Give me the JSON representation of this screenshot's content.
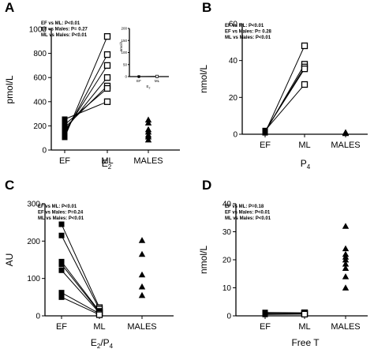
{
  "chart_data": [
    {
      "panel": "A",
      "type": "scatter",
      "categories": [
        "EF",
        "ML",
        "MALES"
      ],
      "xlabel_main": "E",
      "xlabel_sub": "2",
      "ylabel": "pmol/L",
      "ylim": [
        0,
        1000
      ],
      "yticks": [
        0,
        200,
        400,
        600,
        800,
        1000
      ],
      "stats": [
        "EF vs ML: P<0.01",
        "EF vs Males: P= 0.27",
        "ML vs Males: P<0.01"
      ],
      "paired": [
        [
          105,
          940
        ],
        [
          130,
          790
        ],
        [
          150,
          700
        ],
        [
          165,
          600
        ],
        [
          185,
          530
        ],
        [
          210,
          510
        ],
        [
          255,
          400
        ]
      ],
      "males": [
        85,
        110,
        125,
        150,
        170,
        225,
        250
      ],
      "inset": {
        "categories": [
          "EF",
          "ML"
        ],
        "xlabel_main": "E",
        "xlabel_sub": "2",
        "ylabel": "nmol/L",
        "ylim": [
          0,
          200
        ],
        "yticks": [
          0,
          50,
          100,
          150,
          200
        ],
        "values": [
          0.2,
          0.7
        ]
      }
    },
    {
      "panel": "B",
      "type": "scatter",
      "categories": [
        "EF",
        "ML",
        "MALES"
      ],
      "xlabel_main": "P",
      "xlabel_sub": "4",
      "ylabel": "nmol/L",
      "ylim": [
        0,
        60
      ],
      "yticks": [
        0,
        20,
        40,
        60
      ],
      "stats": [
        "EF vs ML: P<0.01",
        "EF vs Males: P= 0.28",
        "ML vs Males: P<0.01"
      ],
      "paired": [
        [
          0.8,
          48
        ],
        [
          1.2,
          38
        ],
        [
          1.5,
          36.5
        ],
        [
          1.8,
          35.5
        ],
        [
          2.0,
          27
        ]
      ],
      "males": [
        0.5,
        0.8,
        1.0
      ]
    },
    {
      "panel": "C",
      "type": "scatter",
      "categories": [
        "EF",
        "ML",
        "MALES"
      ],
      "xlabel_main": "E",
      "xlabel_sub": "2",
      "xlabel_mid": "/P",
      "xlabel_sub2": "4",
      "ylabel": "AU",
      "ylim": [
        0,
        300
      ],
      "yticks": [
        0,
        100,
        200,
        300
      ],
      "stats": [
        "EF vs ML: P<0.01",
        "EF vs Males: P=0.24",
        "ML vs Males: P<0.01"
      ],
      "paired": [
        [
          245,
          22
        ],
        [
          215,
          18
        ],
        [
          145,
          12
        ],
        [
          138,
          10
        ],
        [
          122,
          8
        ],
        [
          62,
          6
        ],
        [
          50,
          3
        ]
      ],
      "males": [
        202,
        165,
        110,
        78,
        55
      ]
    },
    {
      "panel": "D",
      "type": "scatter",
      "categories": [
        "EF",
        "ML",
        "MALES"
      ],
      "xlabel_main": "Free T",
      "ylabel": "nmol/L",
      "ylim": [
        0,
        40
      ],
      "yticks": [
        0,
        10,
        20,
        30,
        40
      ],
      "stats": [
        "EF vs ML: P=0.18",
        "EF vs Males: P<0.01",
        "ML vs Males: P<0.01"
      ],
      "paired": [
        [
          1.2,
          1.1
        ],
        [
          0.9,
          0.8
        ],
        [
          0.7,
          0.9
        ],
        [
          0.5,
          0.6
        ]
      ],
      "males": [
        32,
        24,
        22,
        21,
        20,
        18.5,
        17,
        14,
        10
      ]
    }
  ]
}
